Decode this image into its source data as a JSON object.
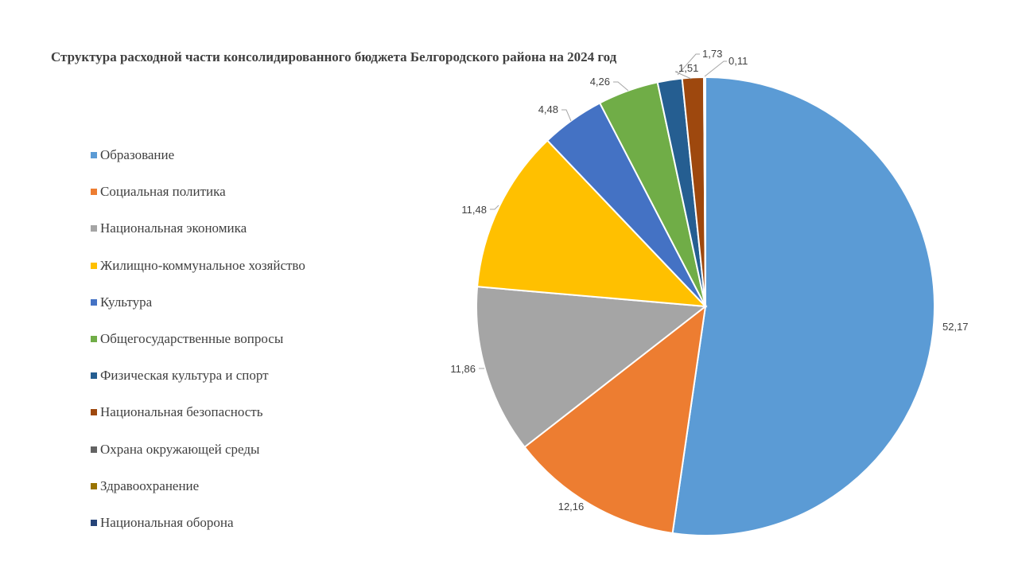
{
  "chart_data": {
    "type": "pie",
    "title": "Структура расходной части консолидированного бюджета Белгородского района на 2024 год",
    "legend_position": "left",
    "slices": [
      {
        "label": "Образование",
        "value": 52.17,
        "value_label": "52,17",
        "color": "#5b9bd5"
      },
      {
        "label": "Социальная политика",
        "value": 12.16,
        "value_label": "12,16",
        "color": "#ed7d31"
      },
      {
        "label": "Национальная экономика",
        "value": 11.86,
        "value_label": "11,86",
        "color": "#a5a5a5"
      },
      {
        "label": "Жилищно-коммунальное хозяйство",
        "value": 11.48,
        "value_label": "11,48",
        "color": "#ffc000"
      },
      {
        "label": "Культура",
        "value": 4.48,
        "value_label": "4,48",
        "color": "#4472c4"
      },
      {
        "label": "Общегосударственные вопросы",
        "value": 4.26,
        "value_label": "4,26",
        "color": "#70ad47"
      },
      {
        "label": "Физическая культура и спорт",
        "value": 1.73,
        "value_label": "1,73",
        "color": "#255e91"
      },
      {
        "label": "Национальная безопасность",
        "value": 1.51,
        "value_label": "1,51",
        "color": "#9e480e"
      },
      {
        "label": "Охрана окружающей среды",
        "value": 0.11,
        "value_label": "0,11",
        "color": "#636363"
      },
      {
        "label": "Здравоохранение",
        "value": 0.0,
        "value_label": "",
        "color": "#997300"
      },
      {
        "label": "Национальная оборона",
        "value": 0.0,
        "value_label": "",
        "color": "#264478"
      }
    ]
  }
}
